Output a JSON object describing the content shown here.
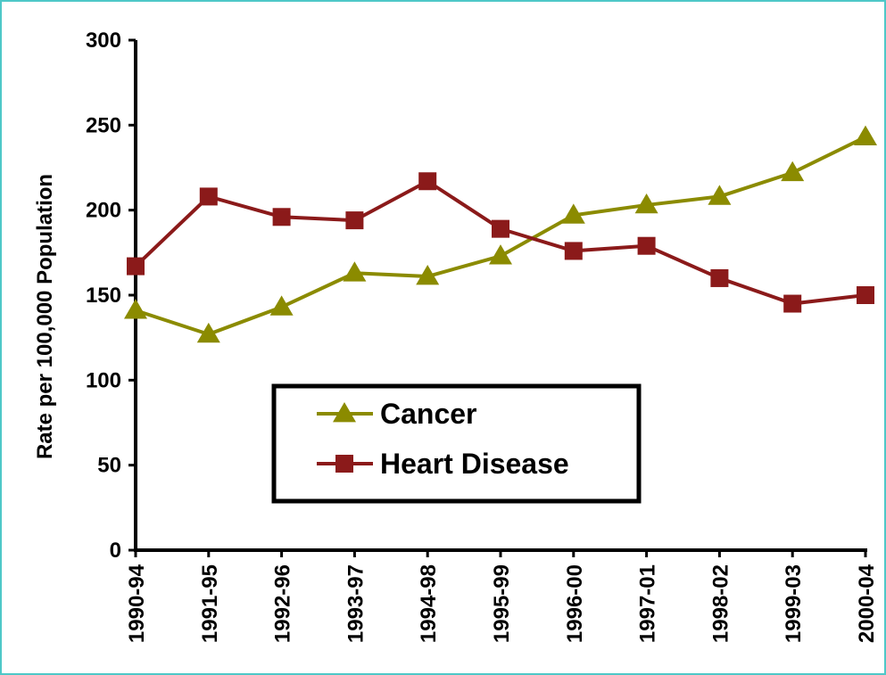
{
  "chart_data": {
    "type": "line",
    "title": "",
    "xlabel": "",
    "ylabel": "Rate per 100,000 Population",
    "ylim": [
      0,
      300
    ],
    "yticks": [
      0,
      50,
      100,
      150,
      200,
      250,
      300
    ],
    "categories": [
      "1990-94",
      "1991-95",
      "1992-96",
      "1993-97",
      "1994-98",
      "1995-99",
      "1996-00",
      "1997-01",
      "1998-02",
      "1999-03",
      "2000-04"
    ],
    "grid": false,
    "legend_position": "center",
    "series": [
      {
        "name": "Cancer",
        "marker": "triangle",
        "color": "#8b8b00",
        "values": [
          141,
          127,
          143,
          163,
          161,
          173,
          197,
          203,
          208,
          222,
          243
        ]
      },
      {
        "name": "Heart Disease",
        "marker": "square",
        "color": "#8b1a1a",
        "values": [
          167,
          208,
          196,
          194,
          217,
          189,
          176,
          179,
          160,
          145,
          150
        ]
      }
    ]
  }
}
